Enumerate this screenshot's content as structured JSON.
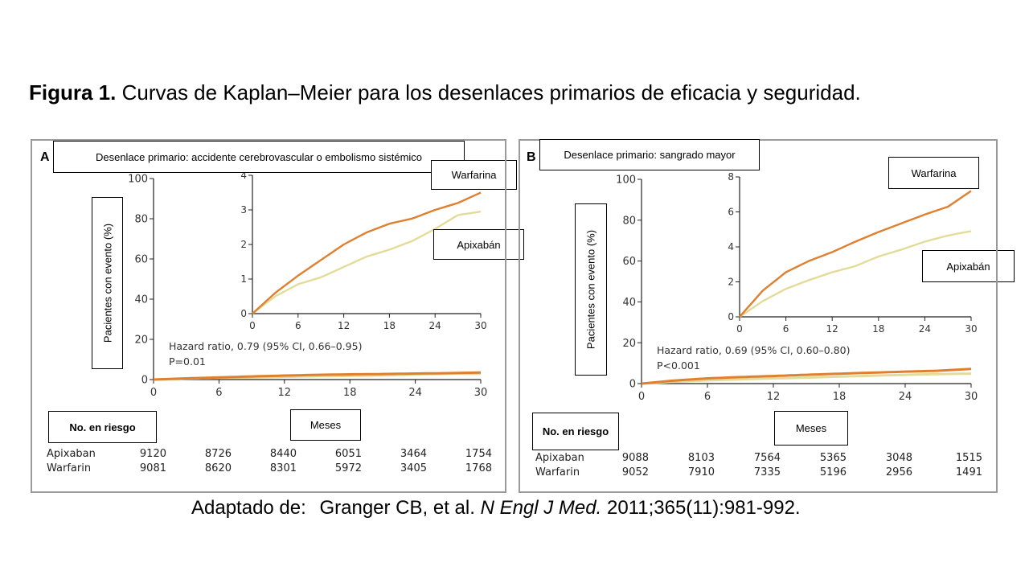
{
  "figure": {
    "label": "Figura 1.",
    "title": "Curvas de Kaplan–Meier para los desenlaces primarios de eficacia y seguridad."
  },
  "caption": {
    "prefix": "Adaptado de:",
    "authors": "Granger CB, et al.",
    "journal": "N Engl J Med.",
    "citation": "2011;365(11):981-992."
  },
  "colors": {
    "warfarin": "#e0802f",
    "apixaban": "#e3dc99",
    "axis": "#222222",
    "frame": "#9a9a9a"
  },
  "chart_data": [
    {
      "type": "line",
      "panel": "A",
      "title": "Desenlace primario: accidente cerebrovascular o embolismo sistémico",
      "ylabel": "Pacientes con evento (%)",
      "xlabel": "Meses",
      "xlim": [
        0,
        30
      ],
      "ylim": [
        0,
        100
      ],
      "xticks": [
        0,
        6,
        12,
        18,
        24,
        30
      ],
      "yticks": [
        0,
        20,
        40,
        60,
        80,
        100
      ],
      "series": [
        {
          "name": "Warfarina",
          "x": [
            0,
            3,
            6,
            9,
            12,
            15,
            18,
            21,
            24,
            27,
            30
          ],
          "y": [
            0,
            0.6,
            1.1,
            1.55,
            2.0,
            2.35,
            2.6,
            2.75,
            3.0,
            3.2,
            3.5
          ]
        },
        {
          "name": "Apixabán",
          "x": [
            0,
            3,
            6,
            9,
            12,
            15,
            18,
            21,
            24,
            27,
            30
          ],
          "y": [
            0,
            0.5,
            0.85,
            1.05,
            1.35,
            1.65,
            1.85,
            2.1,
            2.45,
            2.85,
            2.95
          ]
        }
      ],
      "inset": {
        "xlim": [
          0,
          30
        ],
        "ylim": [
          0,
          4
        ],
        "xticks": [
          0,
          6,
          12,
          18,
          24,
          30
        ],
        "yticks": [
          0,
          1,
          2,
          3,
          4
        ]
      },
      "hazard_ratio": "Hazard ratio, 0.79 (95% CI, 0.66–0.95)",
      "p_value": "P=0.01",
      "risk_table": {
        "header": "No. en riesgo",
        "times": [
          0,
          6,
          12,
          18,
          24,
          30
        ],
        "rows": [
          {
            "label": "Apixaban",
            "values": [
              "9120",
              "8726",
              "8440",
              "6051",
              "3464",
              "1754"
            ]
          },
          {
            "label": "Warfarin",
            "values": [
              "9081",
              "8620",
              "8301",
              "5972",
              "3405",
              "1768"
            ]
          }
        ]
      }
    },
    {
      "type": "line",
      "panel": "B",
      "title": "Desenlace primario: sangrado mayor",
      "ylabel": "Pacientes con evento (%)",
      "xlabel": "Meses",
      "xlim": [
        0,
        30
      ],
      "ylim": [
        0,
        100
      ],
      "xticks": [
        0,
        6,
        12,
        18,
        24,
        30
      ],
      "yticks": [
        0,
        20,
        40,
        60,
        80,
        100
      ],
      "series": [
        {
          "name": "Warfarina",
          "x": [
            0,
            3,
            6,
            9,
            12,
            15,
            18,
            21,
            24,
            27,
            30
          ],
          "y": [
            0,
            1.5,
            2.55,
            3.2,
            3.7,
            4.3,
            4.85,
            5.35,
            5.85,
            6.3,
            7.2
          ]
        },
        {
          "name": "Apixabán",
          "x": [
            0,
            3,
            6,
            9,
            12,
            15,
            18,
            21,
            24,
            27,
            30
          ],
          "y": [
            0,
            0.9,
            1.6,
            2.1,
            2.55,
            2.9,
            3.45,
            3.85,
            4.3,
            4.65,
            4.9
          ]
        }
      ],
      "inset": {
        "xlim": [
          0,
          30
        ],
        "ylim": [
          0,
          8
        ],
        "xticks": [
          0,
          6,
          12,
          18,
          24,
          30
        ],
        "yticks": [
          0,
          2,
          4,
          6,
          8
        ]
      },
      "hazard_ratio": "Hazard ratio, 0.69 (95% CI, 0.60–0.80)",
      "p_value": "P<0.001",
      "risk_table": {
        "header": "No. en riesgo",
        "times": [
          0,
          6,
          12,
          18,
          24,
          30
        ],
        "rows": [
          {
            "label": "Apixaban",
            "values": [
              "9088",
              "8103",
              "7564",
              "5365",
              "3048",
              "1515"
            ]
          },
          {
            "label": "Warfarin",
            "values": [
              "9052",
              "7910",
              "7335",
              "5196",
              "2956",
              "1491"
            ]
          }
        ]
      }
    }
  ]
}
